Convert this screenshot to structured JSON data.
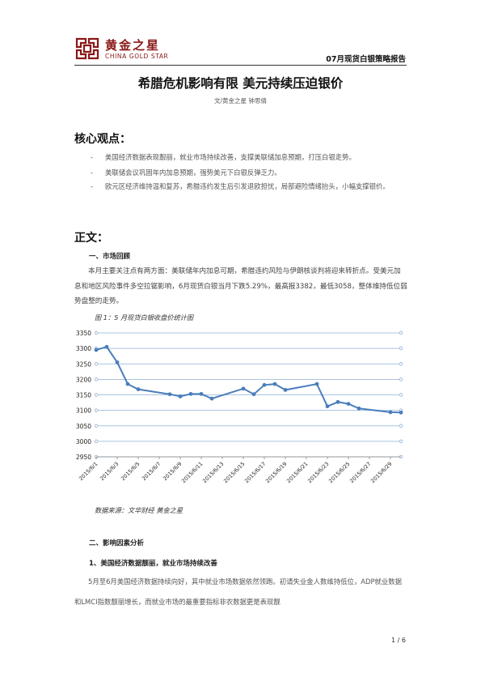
{
  "header": {
    "brand_cn": "黄金之星",
    "brand_en": "CHINA GOLD STAR",
    "report_name": "07月现货白银策略报告"
  },
  "doc": {
    "title": "希腊危机影响有限  美元持续压迫银价",
    "byline": "文/黄金之星  钟思倩"
  },
  "core": {
    "heading": "核心观点：",
    "bullets": [
      "美国经济数据表现靓丽，就业市场持续改善，支撑美联储加息预期，打压白银走势。",
      "美联储会议巩固年内加息预期，强势美元下白银反弹乏力。",
      "欧元区经济维持温和复苏，希腊违约发生后引发退欧担忧，局部避险情绪抬头，小幅支撑银价。"
    ]
  },
  "body": {
    "heading": "正文：",
    "s1_title": "一、市场回顾",
    "s1_para": "本月主要关注点有两方面：美联储年内加息可期，希腊违约风险与伊朗核谈判将迎来转折点。受美元加息和地区风险事件多空拉锯影响，6月现货白银当月下跌5.29%，最高报3382，最低3058，整体维持低位弱势盘整的走势。",
    "fig_caption": "图 1：5 月现货白银收盘价统计图",
    "source": "数据来源：文华财经    黄金之星",
    "s2_title": "二、影响因素分析",
    "s2_sub": "1、美国经济数据靓丽，就业市场持续改善",
    "s2_para": "5月至6月美国经济数据持续向好，其中就业市场数据依然领跑。初请失业金人数维持低位，ADP就业数据和LMCI指数靓丽增长，而就业市场的最重要指标非农数据更是表现靓"
  },
  "footer": {
    "page": "1 / 6"
  },
  "chart_data": {
    "type": "line",
    "title": "图 1：5 月现货白银收盘价统计图",
    "xlabel": "",
    "ylabel": "",
    "ylim": [
      2950,
      3350
    ],
    "yticks": [
      2950,
      3000,
      3050,
      3100,
      3150,
      3200,
      3250,
      3300,
      3350
    ],
    "grid": true,
    "x_tick_labels": [
      "2015/6/1",
      "2015/6/3",
      "2015/6/5",
      "2015/6/7",
      "2015/6/9",
      "2015/6/11",
      "2015/6/13",
      "2015/6/15",
      "2015/6/17",
      "2015/6/19",
      "2015/6/21",
      "2015/6/23",
      "2015/6/25",
      "2015/6/27",
      "2015/6/29"
    ],
    "series": [
      {
        "color": "#4a7ebb",
        "points": [
          {
            "day": 1,
            "value": 3295
          },
          {
            "day": 2,
            "value": 3305
          },
          {
            "day": 3,
            "value": 3255
          },
          {
            "day": 4,
            "value": 3185
          },
          {
            "day": 5,
            "value": 3168
          },
          {
            "day": 8,
            "value": 3152
          },
          {
            "day": 9,
            "value": 3145
          },
          {
            "day": 10,
            "value": 3153
          },
          {
            "day": 11,
            "value": 3153
          },
          {
            "day": 12,
            "value": 3138
          },
          {
            "day": 15,
            "value": 3170
          },
          {
            "day": 16,
            "value": 3152
          },
          {
            "day": 17,
            "value": 3182
          },
          {
            "day": 18,
            "value": 3185
          },
          {
            "day": 19,
            "value": 3166
          },
          {
            "day": 22,
            "value": 3185
          },
          {
            "day": 23,
            "value": 3113
          },
          {
            "day": 24,
            "value": 3127
          },
          {
            "day": 25,
            "value": 3121
          },
          {
            "day": 26,
            "value": 3106
          },
          {
            "day": 29,
            "value": 3094
          },
          {
            "day": 30,
            "value": 3093
          }
        ]
      }
    ]
  }
}
